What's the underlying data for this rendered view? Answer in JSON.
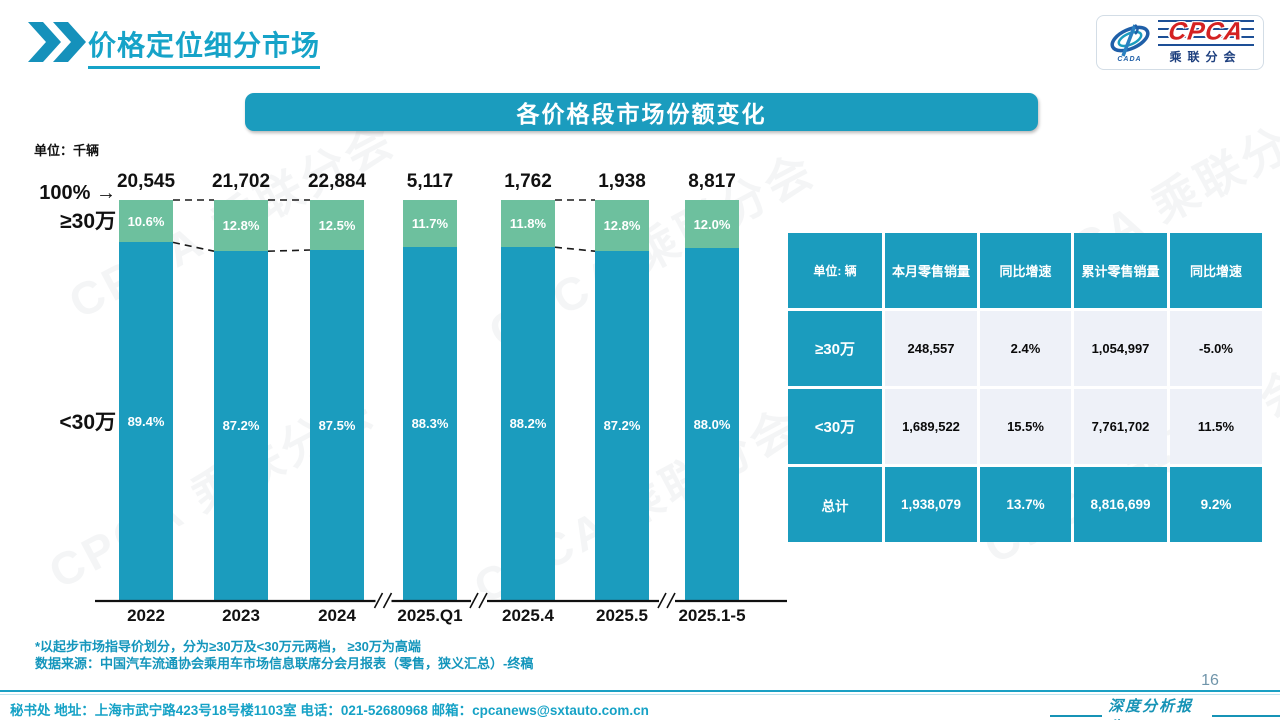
{
  "header": {
    "title": "价格定位细分市场"
  },
  "logo": {
    "cpca": "CPCA",
    "cada": "CADA",
    "subtitle": "乘联分会"
  },
  "banner": {
    "title": "各价格段市场份额变化"
  },
  "chart_data": {
    "type": "bar",
    "stacked": true,
    "unit_label": "单位：千辆",
    "axis_left_top_label": "100%",
    "arrow_icon": "→",
    "categories": [
      "2022",
      "2023",
      "2024",
      "2025.Q1",
      "2025.4",
      "2025.5",
      "2025.1-5"
    ],
    "totals": [
      20545,
      21702,
      22884,
      5117,
      1762,
      1938,
      8817
    ],
    "totals_labels": [
      "20,545",
      "21,702",
      "22,884",
      "5,117",
      "1,762",
      "1,938",
      "8,817"
    ],
    "series": [
      {
        "name": "≥30万",
        "color": "#6dc09e",
        "values_pct": [
          10.6,
          12.8,
          12.5,
          11.7,
          11.8,
          12.8,
          12.0
        ],
        "labels": [
          "10.6%",
          "12.8%",
          "12.5%",
          "11.7%",
          "11.8%",
          "12.8%",
          "12.0%"
        ]
      },
      {
        "name": "<30万",
        "color": "#1b9cbe",
        "values_pct": [
          89.4,
          87.2,
          87.5,
          88.3,
          88.2,
          87.2,
          88.0
        ],
        "labels": [
          "89.4%",
          "87.2%",
          "87.5%",
          "88.3%",
          "88.2%",
          "87.2%",
          "88.0%"
        ]
      }
    ],
    "ylim": [
      0,
      100
    ],
    "axis_breaks_after": [
      2,
      3,
      5
    ],
    "connected_pairs": [
      [
        0,
        1
      ],
      [
        1,
        2
      ],
      [
        4,
        5
      ]
    ],
    "legend_position": "left-axis"
  },
  "table": {
    "headers": [
      "单位: 辆",
      "本月零售销量",
      "同比增速",
      "累计零售销量",
      "同比增速"
    ],
    "rows": [
      {
        "label": "≥30万",
        "cells": [
          "248,557",
          "2.4%",
          "1,054,997",
          "-5.0%"
        ],
        "style": "light"
      },
      {
        "label": "<30万",
        "cells": [
          "1,689,522",
          "15.5%",
          "7,761,702",
          "11.5%"
        ],
        "style": "light"
      },
      {
        "label": "总计",
        "cells": [
          "1,938,079",
          "13.7%",
          "8,816,699",
          "9.2%"
        ],
        "style": "teal"
      }
    ]
  },
  "notes": [
    "*以起步市场指导价划分，分为≥30万及<30万元两档， ≥30万为高端",
    "数据来源：中国汽车流通协会乘用车市场信息联席分会月报表（零售，狭义汇总）-终稿"
  ],
  "footer": {
    "contact": "秘书处  地址：上海市武宁路423号18号楼1103室  电话：021-52680968   邮箱：cpcanews@sxtauto.com.cn",
    "report_label": "深度分析报告",
    "page_number": "16"
  },
  "watermark_text": "CPCA 乘联分会",
  "colors": {
    "teal": "#1b9cbe",
    "green": "#6dc09e",
    "title": "#16a3c8",
    "note": "#1496bc",
    "light_cell": "#eef1f8",
    "cpca_red": "#d42222",
    "cpca_navy": "#1d4f96"
  }
}
